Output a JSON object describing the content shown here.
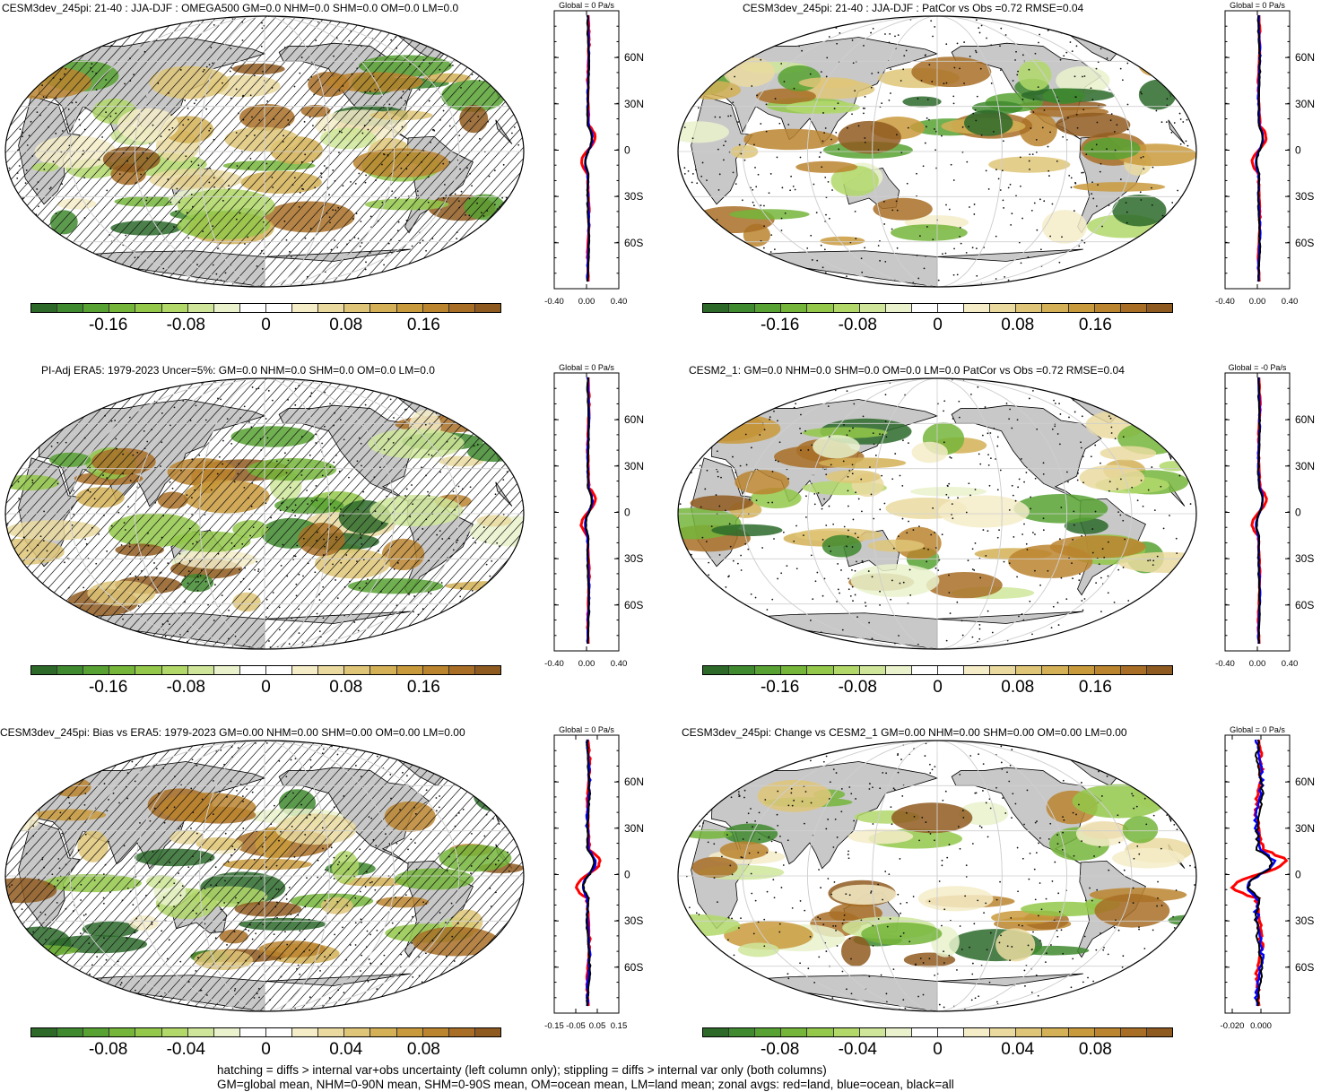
{
  "panels": [
    {
      "title": "CESM3dev_245pi: 21-40 : JJA-DJF : OMEGA500 GM=0.0 NHM=0.0 SHM=0.0 OM=0.0 LM=0.0",
      "colorbar_ticks": [
        "-0.16",
        "-0.08",
        "0",
        "0.08",
        "0.16"
      ],
      "hatching": true,
      "zonal": {
        "header": "Global = 0 Pa/s",
        "xticks": [
          "-0.40",
          "0.00",
          "0.40"
        ],
        "yticks": [
          "60N",
          "30N",
          "0",
          "30S",
          "60S"
        ],
        "amp": "small"
      }
    },
    {
      "title": "CESM3dev_245pi: 21-40 : JJA-DJF : PatCor vs Obs =0.72 RMSE=0.04",
      "colorbar_ticks": [
        "-0.16",
        "-0.08",
        "0",
        "0.08",
        "0.16"
      ],
      "hatching": false,
      "zonal": {
        "header": "Global = 0 Pa/s",
        "xticks": [
          "-0.40",
          "0.00",
          "0.40"
        ],
        "yticks": [
          "60N",
          "30N",
          "0",
          "30S",
          "60S"
        ],
        "amp": "small"
      }
    },
    {
      "title": "PI-Adj ERA5: 1979-2023 Uncer=5%: GM=0.0 NHM=0.0 SHM=0.0 OM=0.0 LM=0.0",
      "colorbar_ticks": [
        "-0.16",
        "-0.08",
        "0",
        "0.08",
        "0.16"
      ],
      "hatching": true,
      "zonal": {
        "header": "Global = 0 Pa/s",
        "xticks": [
          "-0.40",
          "0.00",
          "0.40"
        ],
        "yticks": [
          "60N",
          "30N",
          "0",
          "30S",
          "60S"
        ],
        "amp": "small"
      }
    },
    {
      "title": "CESM2_1: GM=0.0 NHM=0.0 SHM=0.0 OM=0.0 LM=0.0 PatCor vs Obs =0.72 RMSE=0.04",
      "colorbar_ticks": [
        "-0.16",
        "-0.08",
        "0",
        "0.08",
        "0.16"
      ],
      "hatching": false,
      "zonal": {
        "header": "Global = -0 Pa/s",
        "xticks": [
          "-0.40",
          "0.00",
          "0.40"
        ],
        "yticks": [
          "60N",
          "30N",
          "0",
          "30S",
          "60S"
        ],
        "amp": "small"
      }
    },
    {
      "title": "CESM3dev_245pi: Bias vs ERA5: 1979-2023 GM=0.00 NHM=0.00 SHM=0.00 OM=0.00 LM=0.00",
      "colorbar_ticks": [
        "-0.08",
        "-0.04",
        "0",
        "0.04",
        "0.08"
      ],
      "hatching": true,
      "zonal": {
        "header": "Global = 0 Pa/s",
        "xticks": [
          "-0.15",
          "-0.05",
          "0.05",
          "0.15"
        ],
        "yticks": [
          "60N",
          "30N",
          "0",
          "30S",
          "60S"
        ],
        "amp": "medium"
      }
    },
    {
      "title": "CESM3dev_245pi: Change vs CESM2_1 GM=0.00 NHM=0.00 SHM=0.00 OM=0.00 LM=0.00",
      "colorbar_ticks": [
        "-0.08",
        "-0.04",
        "0",
        "0.04",
        "0.08"
      ],
      "hatching": false,
      "zonal": {
        "header": "Global = 0 Pa/s",
        "xticks": [
          "-0.020",
          "0.000"
        ],
        "yticks": [
          "60N",
          "30N",
          "0",
          "30S",
          "60S"
        ],
        "amp": "large"
      }
    }
  ],
  "colorbar_colors": [
    "#2d6a2a",
    "#3f8a2e",
    "#57a232",
    "#74b53a",
    "#93c84a",
    "#b2d86a",
    "#cfe69a",
    "#e9f2cc",
    "#ffffff",
    "#ffffff",
    "#f5ecc8",
    "#eadaa0",
    "#dfc578",
    "#d4b056",
    "#c99a3c",
    "#bb842e",
    "#a86e26",
    "#8f5a20"
  ],
  "colors": {
    "land": "#c8c8c8",
    "zonal_land": "#ff0000",
    "zonal_ocean": "#0000ff",
    "zonal_all": "#000000"
  },
  "footer": {
    "line1": "hatching = diffs > internal var+obs uncertainty (left column only); stippling = diffs > internal var only (both columns)",
    "line2": "GM=global mean, NHM=0-90N mean, SHM=0-90S mean, OM=ocean mean, LM=land mean; zonal avgs: red=land, blue=ocean, black=all"
  }
}
